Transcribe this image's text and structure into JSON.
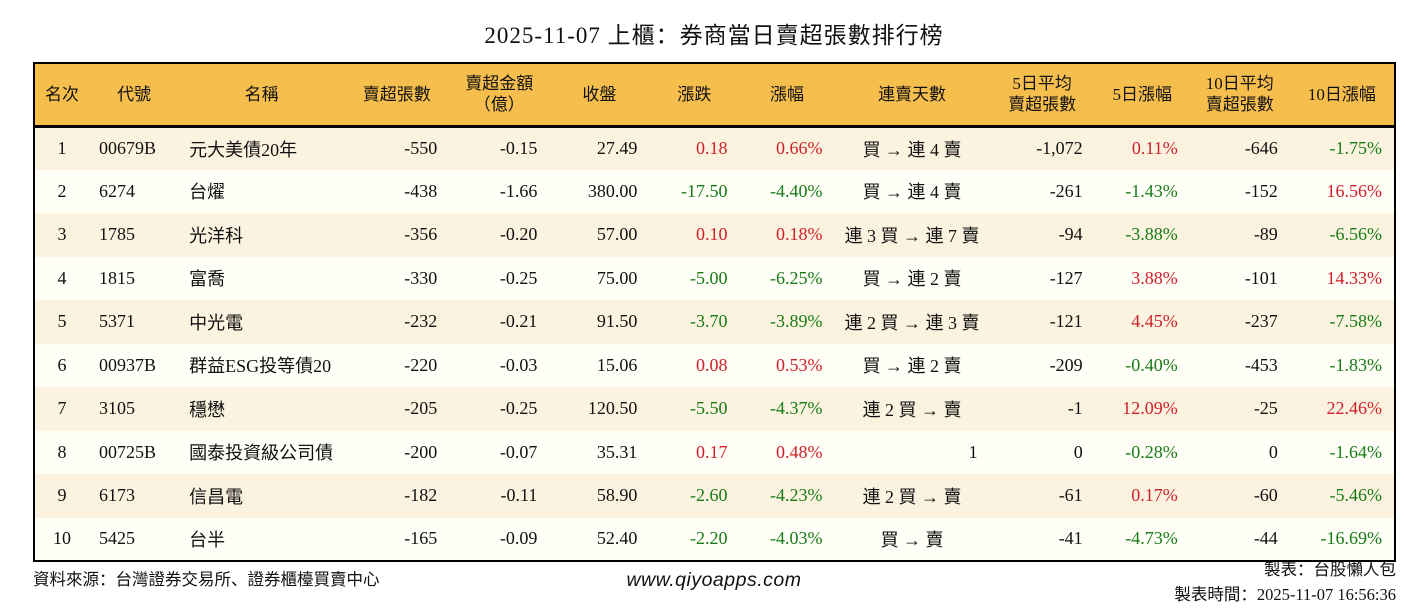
{
  "title": "2025-11-07 上櫃：券商當日賣超張數排行榜",
  "colors": {
    "header_bg": "#F6BE4D",
    "row_alt_bg": "#FBF3DF",
    "row_bg": "#FFFEF7",
    "up_red": "#D0212A",
    "down_green": "#177C17",
    "border": "#000000"
  },
  "table": {
    "headers": [
      {
        "key": "rank",
        "line1": "名次"
      },
      {
        "key": "code",
        "line1": "代號"
      },
      {
        "key": "name",
        "line1": "名稱"
      },
      {
        "key": "sell_volume",
        "line1": "賣超張數"
      },
      {
        "key": "sell_amount",
        "line1": "賣超金額",
        "line2": "（億）"
      },
      {
        "key": "close",
        "line1": "收盤"
      },
      {
        "key": "change",
        "line1": "漲跌"
      },
      {
        "key": "change_pct",
        "line1": "漲幅"
      },
      {
        "key": "streak",
        "line1": "連賣天數"
      },
      {
        "key": "avg5_volume",
        "line1": "5日平均",
        "line2": "賣超張數"
      },
      {
        "key": "pct5",
        "line1": "5日漲幅"
      },
      {
        "key": "avg10_volume",
        "line1": "10日平均",
        "line2": "賣超張數"
      },
      {
        "key": "pct10",
        "line1": "10日漲幅"
      }
    ],
    "rows": [
      {
        "rank": "1",
        "code": "00679B",
        "name": "元大美債20年",
        "sell_volume": "-550",
        "sell_amount": "-0.15",
        "close": "27.49",
        "change": "0.18",
        "change_pct": "0.66%",
        "streak": "買 → 連 4 賣",
        "avg5_volume": "-1,072",
        "pct5": "0.11%",
        "avg10_volume": "-646",
        "pct10": "-1.75%"
      },
      {
        "rank": "2",
        "code": "6274",
        "name": "台燿",
        "sell_volume": "-438",
        "sell_amount": "-1.66",
        "close": "380.00",
        "change": "-17.50",
        "change_pct": "-4.40%",
        "streak": "買 → 連 4 賣",
        "avg5_volume": "-261",
        "pct5": "-1.43%",
        "avg10_volume": "-152",
        "pct10": "16.56%"
      },
      {
        "rank": "3",
        "code": "1785",
        "name": "光洋科",
        "sell_volume": "-356",
        "sell_amount": "-0.20",
        "close": "57.00",
        "change": "0.10",
        "change_pct": "0.18%",
        "streak": "連 3 買 → 連 7 賣",
        "avg5_volume": "-94",
        "pct5": "-3.88%",
        "avg10_volume": "-89",
        "pct10": "-6.56%"
      },
      {
        "rank": "4",
        "code": "1815",
        "name": "富喬",
        "sell_volume": "-330",
        "sell_amount": "-0.25",
        "close": "75.00",
        "change": "-5.00",
        "change_pct": "-6.25%",
        "streak": "買 → 連 2 賣",
        "avg5_volume": "-127",
        "pct5": "3.88%",
        "avg10_volume": "-101",
        "pct10": "14.33%"
      },
      {
        "rank": "5",
        "code": "5371",
        "name": "中光電",
        "sell_volume": "-232",
        "sell_amount": "-0.21",
        "close": "91.50",
        "change": "-3.70",
        "change_pct": "-3.89%",
        "streak": "連 2 買 → 連 3 賣",
        "avg5_volume": "-121",
        "pct5": "4.45%",
        "avg10_volume": "-237",
        "pct10": "-7.58%"
      },
      {
        "rank": "6",
        "code": "00937B",
        "name": "群益ESG投等債20",
        "sell_volume": "-220",
        "sell_amount": "-0.03",
        "close": "15.06",
        "change": "0.08",
        "change_pct": "0.53%",
        "streak": "買 → 連 2 賣",
        "avg5_volume": "-209",
        "pct5": "-0.40%",
        "avg10_volume": "-453",
        "pct10": "-1.83%"
      },
      {
        "rank": "7",
        "code": "3105",
        "name": "穩懋",
        "sell_volume": "-205",
        "sell_amount": "-0.25",
        "close": "120.50",
        "change": "-5.50",
        "change_pct": "-4.37%",
        "streak": "連 2 買 → 賣",
        "avg5_volume": "-1",
        "pct5": "12.09%",
        "avg10_volume": "-25",
        "pct10": "22.46%"
      },
      {
        "rank": "8",
        "code": "00725B",
        "name": "國泰投資級公司債",
        "sell_volume": "-200",
        "sell_amount": "-0.07",
        "close": "35.31",
        "change": "0.17",
        "change_pct": "0.48%",
        "streak": "1",
        "avg5_volume": "0",
        "pct5": "-0.28%",
        "avg10_volume": "0",
        "pct10": "-1.64%"
      },
      {
        "rank": "9",
        "code": "6173",
        "name": "信昌電",
        "sell_volume": "-182",
        "sell_amount": "-0.11",
        "close": "58.90",
        "change": "-2.60",
        "change_pct": "-4.23%",
        "streak": "連 2 買 → 賣",
        "avg5_volume": "-61",
        "pct5": "0.17%",
        "avg10_volume": "-60",
        "pct10": "-5.46%"
      },
      {
        "rank": "10",
        "code": "5425",
        "name": "台半",
        "sell_volume": "-165",
        "sell_amount": "-0.09",
        "close": "52.40",
        "change": "-2.20",
        "change_pct": "-4.03%",
        "streak": "買 → 賣",
        "avg5_volume": "-41",
        "pct5": "-4.73%",
        "avg10_volume": "-44",
        "pct10": "-16.69%"
      }
    ]
  },
  "footer": {
    "source": "資料來源：台灣證券交易所、證券櫃檯買賣中心",
    "website": "www.qiyoapps.com",
    "author": "製表：台股懶人包",
    "generated_at": "製表時間：2025-11-07 16:56:36"
  }
}
